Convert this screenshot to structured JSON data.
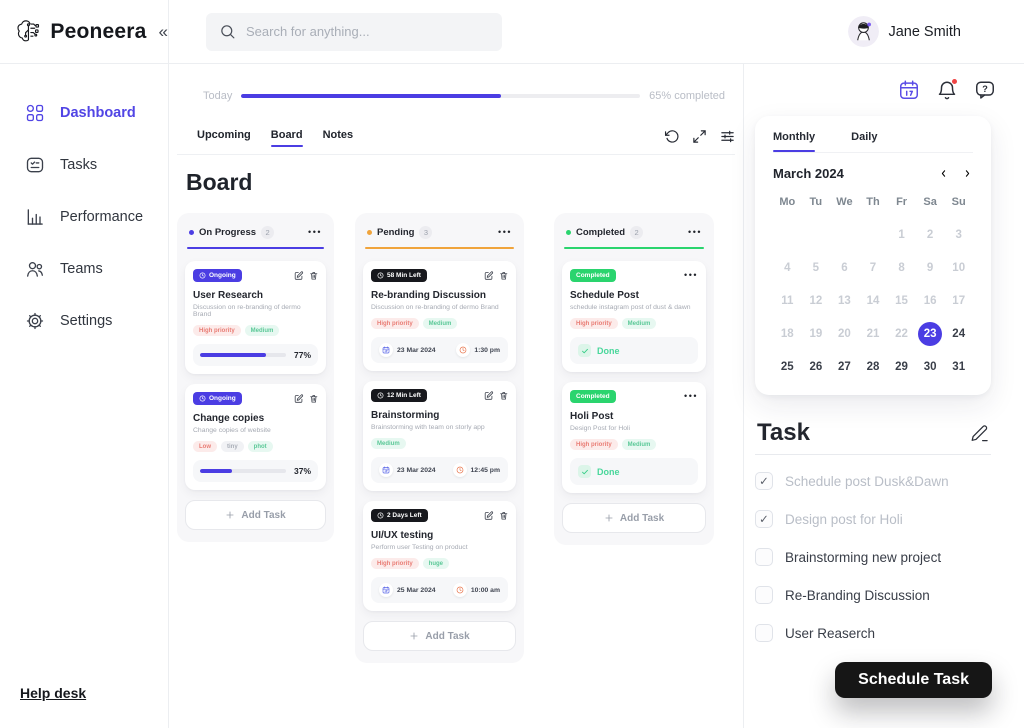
{
  "colors": {
    "accent": "#4B3DE3",
    "pending_orange": "#F0A43C",
    "completed_green": "#2AD46E",
    "tag_pink_text": "#E97C74",
    "tag_green_text": "#5BC897",
    "selected_day_bg": "#4B3DE3"
  },
  "header": {
    "brand": "Peoneera",
    "search_placeholder": "Search for anything...",
    "user_name": "Jane Smith"
  },
  "sidebar": {
    "items": [
      {
        "label": "Dashboard",
        "active": true
      },
      {
        "label": "Tasks",
        "active": false
      },
      {
        "label": "Performance",
        "active": false
      },
      {
        "label": "Teams",
        "active": false
      },
      {
        "label": "Settings",
        "active": false
      }
    ],
    "help": "Help desk"
  },
  "main": {
    "today_label": "Today",
    "progress_percent": 65,
    "progress_text": "65% completed",
    "tabs": [
      {
        "label": "Upcoming",
        "active": false
      },
      {
        "label": "Board",
        "active": true
      },
      {
        "label": "Notes",
        "active": false
      }
    ],
    "board_title": "Board",
    "add_task_label": "Add Task",
    "columns": [
      {
        "name": "On Progress",
        "count": "2",
        "cards": [
          {
            "badge": "Ongoing",
            "title": "User Research",
            "desc": "Discussion on re-branding of dermo Brand",
            "tags": [
              {
                "label": "High priority",
                "type": "pink"
              },
              {
                "label": "Medium",
                "type": "green"
              }
            ],
            "progress": 77,
            "progress_label": "77%"
          },
          {
            "badge": "Ongoing",
            "title": "Change copies",
            "desc": "Change copies of website",
            "tags": [
              {
                "label": "Low",
                "type": "pink"
              },
              {
                "label": "tiny",
                "type": "gray"
              },
              {
                "label": "phot",
                "type": "green"
              }
            ],
            "progress": 37,
            "progress_label": "37%"
          }
        ]
      },
      {
        "name": "Pending",
        "count": "3",
        "cards": [
          {
            "badge": "58 Min Left",
            "title": "Re-branding Discussion",
            "desc": "Discussion on re-branding of dermo Brand",
            "tags": [
              {
                "label": "High priority",
                "type": "pink"
              },
              {
                "label": "Medium",
                "type": "green"
              }
            ],
            "date": "23 Mar 2024",
            "time": "1:30 pm"
          },
          {
            "badge": "12 Min Left",
            "title": "Brainstorming",
            "desc": "Brainstorming with team on storly app",
            "tags": [
              {
                "label": "Medium",
                "type": "green"
              }
            ],
            "date": "23 Mar 2024",
            "time": "12:45 pm"
          },
          {
            "badge": "2 Days Left",
            "title": "UI/UX testing",
            "desc": "Perform user Testing on product",
            "tags": [
              {
                "label": "High priority",
                "type": "pink"
              },
              {
                "label": "huge",
                "type": "green"
              }
            ],
            "date": "25 Mar 2024",
            "time": "10:00 am"
          }
        ]
      },
      {
        "name": "Completed",
        "count": "2",
        "cards": [
          {
            "badge": "Completed",
            "title": "Schedule Post",
            "desc": "schedule instagram post of dust & dawn",
            "tags": [
              {
                "label": "High priority",
                "type": "pink"
              },
              {
                "label": "Medium",
                "type": "green"
              }
            ],
            "done_label": "Done"
          },
          {
            "badge": "Completed",
            "title": "Holi Post",
            "desc": "Design Post for Holi",
            "tags": [
              {
                "label": "High priority",
                "type": "pink"
              },
              {
                "label": "Medium",
                "type": "green"
              }
            ],
            "done_label": "Done"
          }
        ]
      }
    ]
  },
  "rightbar": {
    "tabs": [
      {
        "label": "Monthly",
        "active": true
      },
      {
        "label": "Daily",
        "active": false
      }
    ],
    "calendar": {
      "title": "March 2024",
      "weekdays": [
        "Mo",
        "Tu",
        "We",
        "Th",
        "Fr",
        "Sa",
        "Su"
      ],
      "weeks": [
        [
          "",
          "",
          "",
          "",
          "1",
          "2",
          "3"
        ],
        [
          "4",
          "5",
          "6",
          "7",
          "8",
          "9",
          "10"
        ],
        [
          "11",
          "12",
          "13",
          "14",
          "15",
          "16",
          "17"
        ],
        [
          "18",
          "19",
          "20",
          "21",
          "22",
          "23",
          "24"
        ],
        [
          "25",
          "26",
          "27",
          "28",
          "29",
          "30",
          "31"
        ]
      ],
      "selected_day": "23"
    },
    "tasks": {
      "title": "Task",
      "items": [
        {
          "label": "Schedule post Dusk&Dawn",
          "checked": true
        },
        {
          "label": "Design post for Holi",
          "checked": true
        },
        {
          "label": "Brainstorming new project",
          "checked": false
        },
        {
          "label": "Re-Branding Discussion",
          "checked": false
        },
        {
          "label": "User Reaserch",
          "checked": false
        }
      ]
    },
    "schedule_button": "Schedule Task"
  }
}
